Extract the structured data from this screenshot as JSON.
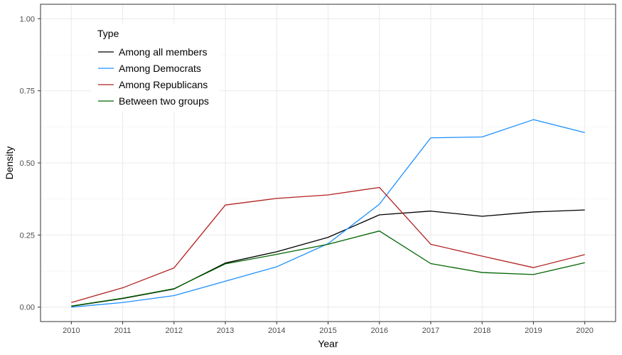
{
  "chart_data": {
    "type": "line",
    "xlabel": "Year",
    "ylabel": "Density",
    "xlim": [
      2009.4,
      2020.6
    ],
    "ylim": [
      -0.05,
      1.05
    ],
    "x": [
      2010,
      2011,
      2012,
      2013,
      2014,
      2015,
      2016,
      2017,
      2018,
      2019,
      2020
    ],
    "x_ticks": [
      "2010",
      "2011",
      "2012",
      "2013",
      "2014",
      "2015",
      "2016",
      "2017",
      "2018",
      "2019",
      "2020"
    ],
    "y_ticks": [
      0,
      0.25,
      0.5,
      0.75,
      1.0
    ],
    "y_tick_labels": [
      "0.00",
      "0.25",
      "0.50",
      "0.75",
      "1.00"
    ],
    "grid": true,
    "legend": {
      "title": "Type",
      "placement": "top-left"
    },
    "series": [
      {
        "name": "Among all members",
        "color": "#000000",
        "values": [
          0.003,
          0.03,
          0.063,
          0.153,
          0.192,
          0.242,
          0.32,
          0.333,
          0.315,
          0.33,
          0.337
        ]
      },
      {
        "name": "Among Democrats",
        "color": "#1e90ff",
        "values": [
          0.0,
          0.016,
          0.04,
          0.09,
          0.14,
          0.22,
          0.357,
          0.587,
          0.59,
          0.65,
          0.605
        ]
      },
      {
        "name": "Among Republicans",
        "color": "#b22222",
        "values": [
          0.016,
          0.067,
          0.136,
          0.354,
          0.377,
          0.389,
          0.415,
          0.218,
          0.177,
          0.137,
          0.182
        ]
      },
      {
        "name": "Between two groups",
        "color": "#006400",
        "values": [
          0.004,
          0.031,
          0.064,
          0.15,
          0.183,
          0.218,
          0.264,
          0.151,
          0.12,
          0.113,
          0.154
        ]
      }
    ]
  }
}
